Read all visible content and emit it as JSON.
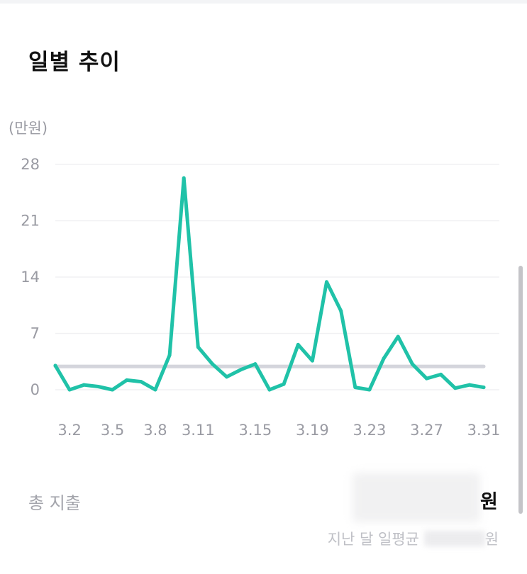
{
  "header": {
    "title": "일별 추이"
  },
  "chart_data": {
    "type": "line",
    "ylabel": "(만원)",
    "ylim": [
      0,
      28
    ],
    "yticks": [
      "28",
      "21",
      "14",
      "7",
      "0"
    ],
    "ytick_values": [
      28,
      21,
      14,
      7,
      0
    ],
    "x_tick_labels": [
      "3.2",
      "3.5",
      "3.8",
      "3.11",
      "3.15",
      "3.19",
      "3.23",
      "3.27",
      "3.31"
    ],
    "x_tick_days": [
      2,
      5,
      8,
      11,
      15,
      19,
      23,
      27,
      31
    ],
    "series": [
      {
        "days": [
          1,
          2,
          3,
          4,
          5,
          6,
          7,
          8,
          9,
          10,
          11,
          12,
          13,
          14,
          15,
          16,
          17,
          18,
          19,
          20,
          21,
          22,
          23,
          24,
          25,
          26,
          27,
          28,
          29,
          30,
          31
        ],
        "values": [
          3.0,
          0.0,
          0.6,
          0.4,
          0.0,
          1.2,
          1.0,
          0.0,
          4.3,
          26.3,
          5.3,
          3.2,
          1.6,
          2.5,
          3.2,
          0.0,
          0.7,
          5.6,
          3.6,
          13.4,
          9.8,
          0.3,
          0.0,
          3.9,
          6.6,
          3.2,
          1.4,
          1.9,
          0.2,
          0.6,
          0.3
        ],
        "color": "#20c2a8"
      }
    ],
    "average_line": {
      "value": 2.9,
      "color": "#d4d5dc"
    },
    "grid": true
  },
  "summary": {
    "total_label": "총 지출",
    "total_unit": "원",
    "avg_prefix": "지난 달 일평균",
    "avg_unit": "원"
  }
}
